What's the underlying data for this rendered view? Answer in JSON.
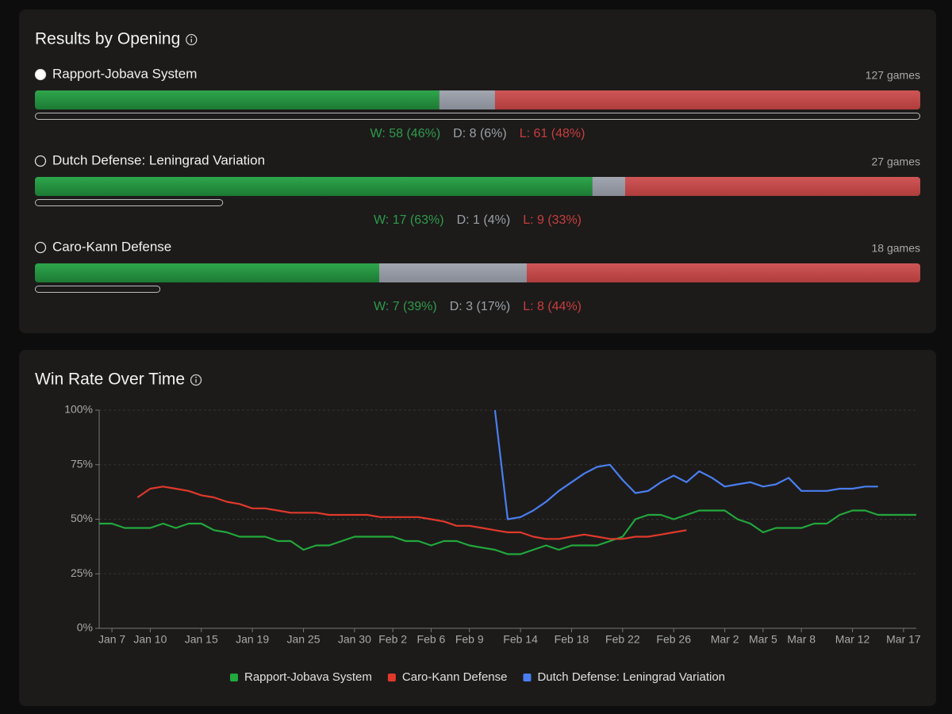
{
  "results": {
    "title": "Results by Opening",
    "openings": [
      {
        "name": "Rapport-Jobava System",
        "selected": true,
        "games": 127,
        "games_label": "127 games",
        "wins": 58,
        "wins_label": "W: 58 (46%)",
        "draws": 8,
        "draws_label": "D: 8 (6%)",
        "losses": 61,
        "losses_label": "L: 61 (48%)"
      },
      {
        "name": "Dutch Defense: Leningrad Variation",
        "selected": false,
        "games": 27,
        "games_label": "27 games",
        "wins": 17,
        "wins_label": "W: 17 (63%)",
        "draws": 1,
        "draws_label": "D: 1 (4%)",
        "losses": 9,
        "losses_label": "L: 9 (33%)"
      },
      {
        "name": "Caro-Kann Defense",
        "selected": false,
        "games": 18,
        "games_label": "18 games",
        "wins": 7,
        "wins_label": "W: 7 (39%)",
        "draws": 3,
        "draws_label": "D: 3 (17%)",
        "losses": 8,
        "losses_label": "L: 8 (44%)"
      }
    ]
  },
  "chart_data": {
    "type": "line",
    "title": "Win Rate Over Time",
    "categories": [
      null,
      "Jan 7",
      null,
      null,
      "Jan 10",
      null,
      null,
      null,
      "Jan 15",
      null,
      null,
      null,
      "Jan 19",
      null,
      null,
      null,
      "Jan 25",
      null,
      null,
      null,
      "Jan 30",
      null,
      null,
      "Feb 2",
      null,
      null,
      "Feb 6",
      null,
      null,
      "Feb 9",
      null,
      null,
      null,
      "Feb 14",
      null,
      null,
      null,
      "Feb 18",
      null,
      null,
      null,
      "Feb 22",
      null,
      null,
      null,
      "Feb 26",
      null,
      null,
      null,
      "Mar 2",
      null,
      null,
      "Mar 5",
      null,
      null,
      "Mar 8",
      null,
      null,
      null,
      "Mar 12",
      null,
      null,
      null,
      "Mar 17",
      null
    ],
    "series": [
      {
        "name": "Rapport-Jobava System",
        "color": "#22a83c",
        "values": [
          48,
          48,
          46,
          46,
          46,
          48,
          46,
          48,
          48,
          45,
          44,
          42,
          42,
          42,
          40,
          40,
          36,
          38,
          38,
          40,
          42,
          42,
          42,
          42,
          40,
          40,
          38,
          40,
          40,
          38,
          37,
          36,
          34,
          34,
          36,
          38,
          36,
          38,
          38,
          38,
          40,
          42,
          50,
          52,
          52,
          50,
          52,
          54,
          54,
          54,
          50,
          48,
          44,
          46,
          46,
          46,
          48,
          48,
          52,
          54,
          54,
          52,
          52,
          52,
          52
        ]
      },
      {
        "name": "Caro-Kann Defense",
        "color": "#e0392b",
        "values": [
          null,
          null,
          null,
          60,
          64,
          65,
          64,
          63,
          61,
          60,
          58,
          57,
          55,
          55,
          54,
          53,
          53,
          53,
          52,
          52,
          52,
          52,
          51,
          51,
          51,
          51,
          50,
          49,
          47,
          47,
          46,
          45,
          44,
          44,
          42,
          41,
          41,
          42,
          43,
          42,
          41,
          41,
          42,
          42,
          43,
          44,
          45,
          null,
          null,
          null,
          null,
          null,
          null,
          null,
          null,
          null,
          null,
          null,
          null,
          null,
          null,
          null,
          null,
          null,
          null
        ]
      },
      {
        "name": "Dutch Defense: Leningrad Variation",
        "color": "#4a7ef0",
        "values": [
          null,
          null,
          null,
          null,
          null,
          null,
          null,
          null,
          null,
          null,
          null,
          null,
          null,
          null,
          null,
          null,
          null,
          null,
          null,
          null,
          null,
          null,
          null,
          null,
          null,
          null,
          null,
          null,
          null,
          null,
          null,
          100,
          50,
          51,
          54,
          58,
          63,
          67,
          71,
          74,
          75,
          68,
          62,
          63,
          67,
          70,
          67,
          72,
          69,
          65,
          66,
          67,
          65,
          66,
          69,
          63,
          63,
          63,
          64,
          64,
          65,
          65,
          null,
          null,
          null
        ]
      }
    ],
    "ylim": [
      0,
      100
    ],
    "yticks": [
      {
        "value": 0,
        "label": "0%"
      },
      {
        "value": 25,
        "label": "25%"
      },
      {
        "value": 50,
        "label": "50%"
      },
      {
        "value": 75,
        "label": "75%"
      },
      {
        "value": 100,
        "label": "100%"
      }
    ],
    "grid": true
  }
}
